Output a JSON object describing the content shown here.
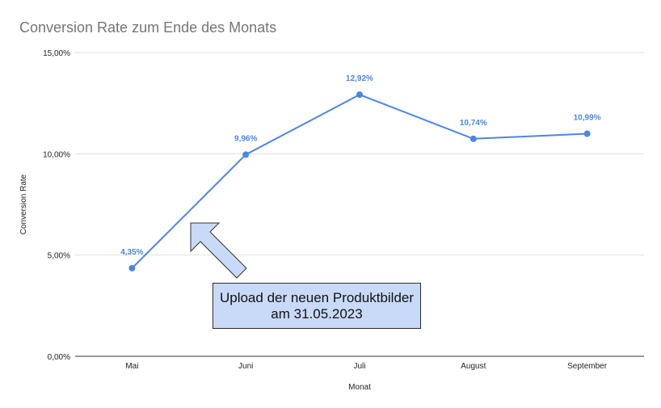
{
  "chart_data": {
    "type": "line",
    "title": "Conversion Rate zum Ende des Monats",
    "xlabel": "Monat",
    "ylabel": "Conversion Rate",
    "categories": [
      "Mai",
      "Juni",
      "Juli",
      "August",
      "September"
    ],
    "series": [
      {
        "values": [
          4.35,
          9.96,
          12.92,
          10.74,
          10.99
        ],
        "labels": [
          "4,35%",
          "9,96%",
          "12,92%",
          "10,74%",
          "10,99%"
        ]
      }
    ],
    "ylim": [
      0,
      15
    ],
    "yticks": [
      0,
      5,
      10,
      15
    ],
    "ytick_labels": [
      "0,00%",
      "5,00%",
      "10,00%",
      "15,00%"
    ],
    "grid": true,
    "legend": "none",
    "line_color": "#4a86e8"
  },
  "annotation": {
    "line1": "Upload der neuen Produktbilder",
    "line2": "am 31.05.2023",
    "box_color": "#c9daf8",
    "arrow_icon": "arrow-up-left-icon"
  }
}
